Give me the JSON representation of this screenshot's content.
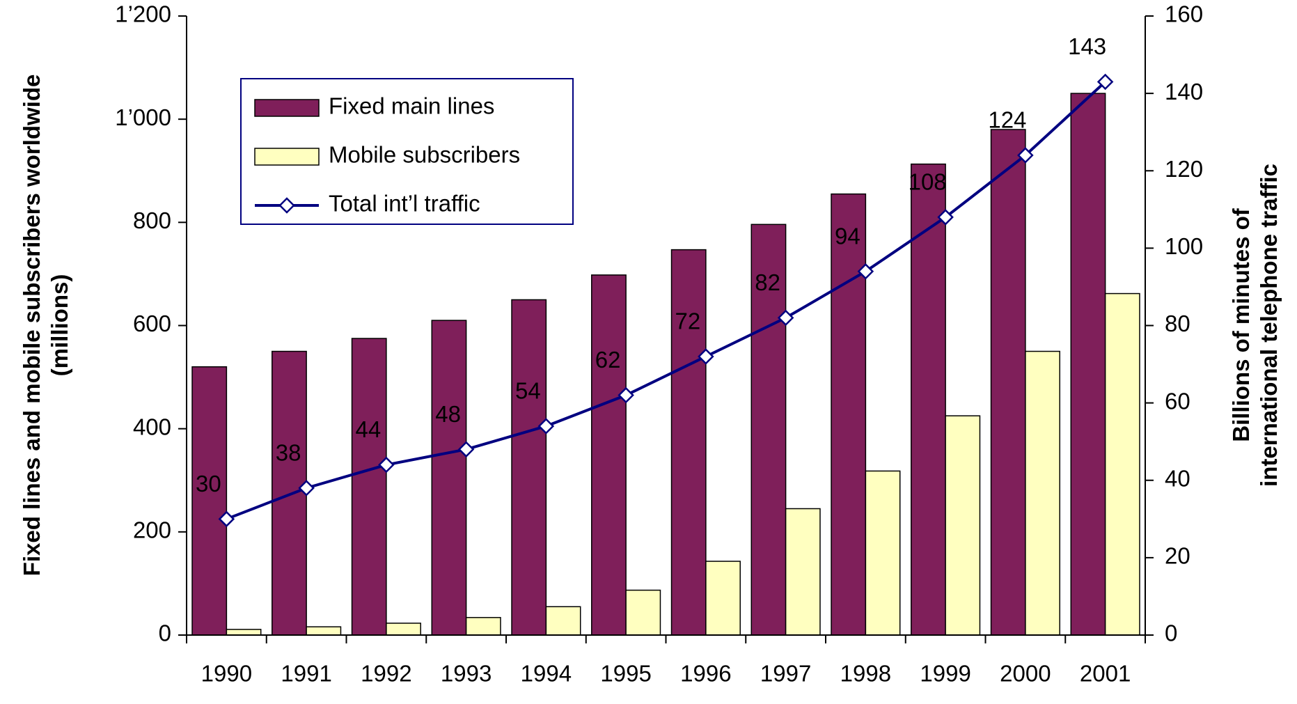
{
  "chart_data": {
    "type": "bar_line",
    "categories": [
      "1990",
      "1991",
      "1992",
      "1993",
      "1994",
      "1995",
      "1996",
      "1997",
      "1998",
      "1999",
      "2000",
      "2001"
    ],
    "ylabel": "Fixed lines and mobile subscribers worldwide (millions)",
    "y2label": "Billions of minutes of international telephone traffic",
    "ylim": [
      0,
      1200
    ],
    "yticks": [
      0,
      200,
      400,
      600,
      800,
      {
        "value": 1000,
        "label": "1’000"
      },
      {
        "value": 1200,
        "label": "1’200"
      }
    ],
    "y2lim": [
      0,
      160
    ],
    "y2ticks": [
      0,
      20,
      40,
      60,
      80,
      100,
      120,
      140,
      160
    ],
    "legend": "upper left",
    "series": [
      {
        "name": "Fixed main lines",
        "type": "bar",
        "color": "#7f1f5a",
        "values": [
          520,
          550,
          575,
          610,
          650,
          698,
          747,
          796,
          855,
          913,
          980,
          1050
        ]
      },
      {
        "name": "Mobile subscribers",
        "type": "bar",
        "color": "#ffffc0",
        "values": [
          11,
          16,
          23,
          34,
          55,
          87,
          143,
          245,
          318,
          425,
          550,
          662
        ]
      },
      {
        "name": "Total int’l traffic",
        "type": "line",
        "axis": "y2",
        "color": "#000080",
        "values": [
          30,
          38,
          44,
          48,
          54,
          62,
          72,
          82,
          94,
          108,
          124,
          143
        ]
      }
    ]
  }
}
